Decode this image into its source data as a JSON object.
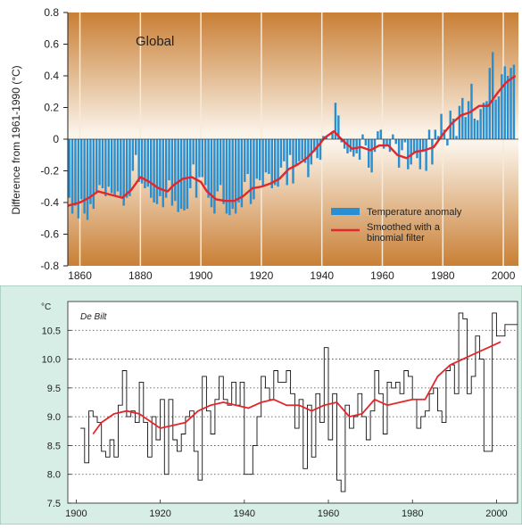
{
  "colors": {
    "bar": "#2a8fd0",
    "smooth": "#e3262c",
    "bg_top": "#c97f35",
    "bg_mid": "#fbf4ea",
    "bottom_bg": "#d7eee6",
    "bottom_plot_bg": "#ffffff",
    "step_line": "#111111"
  },
  "chart_data": [
    {
      "type": "bar",
      "title": "Global",
      "ylabel": "Difference from 1961-1990 (°C)",
      "xlabel": "",
      "ylim": [
        -0.8,
        0.8
      ],
      "xlim": [
        1856,
        2005
      ],
      "xticks": [
        "1860",
        "1880",
        "1900",
        "1920",
        "1940",
        "1960",
        "1980",
        "2000"
      ],
      "yticks": [
        "0.8",
        "0.6",
        "0.4",
        "0.2",
        "0",
        "-0.2",
        "-0.4",
        "-0.6",
        "-0.8"
      ],
      "grid": "vertical",
      "legend_position": "bottom-right",
      "legend": [
        "Temperature anomaly",
        "Smoothed with a binomial filter"
      ],
      "series": [
        {
          "name": "Temperature anomaly",
          "x_start": 1856,
          "values": [
            -0.37,
            -0.47,
            -0.42,
            -0.5,
            -0.38,
            -0.47,
            -0.51,
            -0.41,
            -0.44,
            -0.34,
            -0.29,
            -0.31,
            -0.36,
            -0.3,
            -0.34,
            -0.36,
            -0.33,
            -0.36,
            -0.42,
            -0.37,
            -0.36,
            -0.2,
            -0.1,
            -0.27,
            -0.28,
            -0.31,
            -0.3,
            -0.37,
            -0.4,
            -0.41,
            -0.36,
            -0.43,
            -0.37,
            -0.26,
            -0.42,
            -0.39,
            -0.46,
            -0.44,
            -0.45,
            -0.44,
            -0.31,
            -0.16,
            -0.37,
            -0.24,
            -0.24,
            -0.29,
            -0.37,
            -0.43,
            -0.47,
            -0.33,
            -0.29,
            -0.41,
            -0.47,
            -0.48,
            -0.44,
            -0.47,
            -0.4,
            -0.43,
            -0.27,
            -0.22,
            -0.41,
            -0.38,
            -0.25,
            -0.26,
            -0.3,
            -0.21,
            -0.22,
            -0.31,
            -0.29,
            -0.3,
            -0.18,
            -0.14,
            -0.29,
            -0.1,
            -0.28,
            -0.17,
            -0.14,
            -0.13,
            -0.15,
            -0.24,
            -0.16,
            -0.08,
            -0.12,
            -0.13,
            0.02,
            0.02,
            0.0,
            0.05,
            0.23,
            0.15,
            -0.02,
            -0.06,
            -0.09,
            -0.08,
            -0.11,
            -0.09,
            -0.13,
            0.03,
            -0.04,
            -0.18,
            -0.21,
            -0.08,
            0.05,
            0.06,
            -0.06,
            -0.04,
            -0.08,
            0.03,
            -0.03,
            -0.18,
            -0.07,
            -0.02,
            -0.19,
            -0.16,
            -0.09,
            -0.12,
            -0.19,
            -0.08,
            -0.2,
            0.06,
            -0.16,
            0.06,
            0.02,
            0.16,
            0.06,
            -0.04,
            0.18,
            0.13,
            0.02,
            0.21,
            0.26,
            0.14,
            0.24,
            0.35,
            0.13,
            0.12,
            0.19,
            0.23,
            0.24,
            0.45,
            0.55,
            0.25,
            0.27,
            0.41,
            0.46,
            0.4,
            0.45,
            0.47
          ]
        },
        {
          "name": "Smoothed with a binomial filter",
          "x": [
            1856,
            1860,
            1863,
            1866,
            1870,
            1874,
            1877,
            1880,
            1883,
            1886,
            1889,
            1891,
            1894,
            1897,
            1900,
            1902,
            1905,
            1908,
            1911,
            1914,
            1917,
            1920,
            1923,
            1926,
            1929,
            1932,
            1935,
            1938,
            1941,
            1944,
            1947,
            1950,
            1953,
            1956,
            1959,
            1962,
            1965,
            1968,
            1971,
            1974,
            1977,
            1980,
            1983,
            1986,
            1989,
            1992,
            1995,
            1998,
            2001,
            2004
          ],
          "values": [
            -0.42,
            -0.4,
            -0.37,
            -0.33,
            -0.35,
            -0.37,
            -0.32,
            -0.24,
            -0.27,
            -0.31,
            -0.33,
            -0.29,
            -0.25,
            -0.24,
            -0.27,
            -0.33,
            -0.38,
            -0.39,
            -0.39,
            -0.36,
            -0.31,
            -0.3,
            -0.28,
            -0.25,
            -0.19,
            -0.16,
            -0.12,
            -0.06,
            0.01,
            0.05,
            -0.01,
            -0.06,
            -0.05,
            -0.07,
            -0.04,
            -0.04,
            -0.1,
            -0.12,
            -0.08,
            -0.07,
            -0.05,
            0.03,
            0.1,
            0.15,
            0.17,
            0.21,
            0.21,
            0.29,
            0.36,
            0.4
          ]
        }
      ]
    },
    {
      "type": "line",
      "title": "De Bilt",
      "ylabel": "°C",
      "xlabel": "",
      "ylim": [
        7.5,
        11.0
      ],
      "xlim": [
        1898,
        2005
      ],
      "xticks": [
        "1900",
        "1920",
        "1940",
        "1960",
        "1980",
        "2000"
      ],
      "yticks": [
        "10.5",
        "10.0",
        "9.5",
        "9.0",
        "8.5",
        "8.0",
        "7.5"
      ],
      "grid": "horizontal dotted",
      "series": [
        {
          "name": "",
          "style": "step",
          "x_start": 1901,
          "values": [
            8.8,
            8.2,
            9.1,
            9.0,
            8.9,
            8.4,
            8.3,
            8.6,
            8.3,
            9.2,
            9.8,
            9.0,
            9.1,
            8.9,
            9.6,
            8.9,
            8.3,
            9.0,
            8.6,
            9.3,
            8.0,
            9.3,
            8.6,
            8.4,
            8.7,
            9.0,
            9.1,
            8.4,
            7.9,
            9.7,
            9.1,
            8.7,
            9.3,
            9.7,
            9.3,
            9.2,
            9.6,
            9.2,
            9.6,
            8.0,
            8.0,
            8.5,
            9.0,
            9.7,
            9.5,
            9.3,
            9.8,
            9.6,
            9.6,
            9.8,
            9.4,
            8.8,
            9.3,
            8.1,
            9.2,
            8.3,
            9.4,
            8.9,
            10.2,
            8.6,
            9.4,
            7.9,
            7.7,
            9.2,
            8.8,
            9.0,
            9.4,
            9.0,
            8.6,
            9.1,
            9.8,
            9.4,
            8.7,
            9.6,
            9.5,
            9.6,
            9.4,
            9.8,
            9.7,
            9.3,
            8.8,
            9.0,
            9.1,
            9.4,
            9.5,
            9.1,
            8.9,
            9.8,
            9.9,
            9.4,
            10.8,
            10.7,
            9.4,
            9.7,
            10.4,
            10.0,
            8.4,
            8.4,
            10.8,
            10.4,
            10.4,
            10.6,
            10.6,
            10.6
          ],
          "y_note": "yearly means"
        },
        {
          "name": "",
          "style": "smooth",
          "x": [
            1904,
            1906,
            1909,
            1912,
            1915,
            1918,
            1920,
            1923,
            1926,
            1929,
            1932,
            1935,
            1938,
            1941,
            1944,
            1947,
            1950,
            1953,
            1956,
            1959,
            1962,
            1965,
            1968,
            1971,
            1974,
            1977,
            1980,
            1983,
            1986,
            1989,
            1992,
            1995,
            1998,
            2001
          ],
          "values": [
            8.7,
            8.9,
            9.05,
            9.1,
            9.05,
            8.9,
            8.8,
            8.85,
            8.9,
            9.1,
            9.2,
            9.25,
            9.2,
            9.15,
            9.25,
            9.3,
            9.2,
            9.2,
            9.1,
            9.2,
            9.25,
            9.0,
            9.05,
            9.3,
            9.2,
            9.25,
            9.3,
            9.3,
            9.7,
            9.9,
            10.0,
            10.1,
            10.2,
            10.3
          ]
        }
      ]
    }
  ]
}
